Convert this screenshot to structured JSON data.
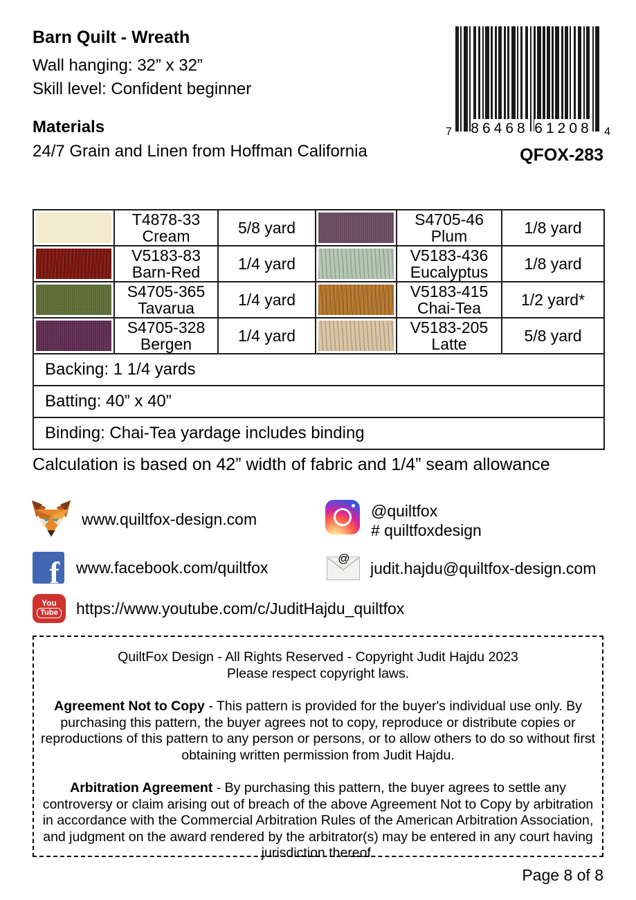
{
  "header": {
    "title": "Barn Quilt - Wreath",
    "size_line": "Wall hanging: 32” x 32”",
    "skill_line": "Skill level: Confident beginner",
    "materials_heading": "Materials",
    "materials_line": "24/7 Grain and Linen from Hoffman California"
  },
  "barcode": {
    "digit_left": "7",
    "group1": "86468",
    "group2": "61208",
    "digit_right": "4",
    "sku": "QFOX-283"
  },
  "fabric_table": {
    "rows": [
      {
        "left": {
          "code": "T4878-33",
          "name": "Cream",
          "yardage": "5/8 yard",
          "color": "#f3ebcd",
          "texture": "plain"
        },
        "right": {
          "code": "S4705-46",
          "name": "Plum",
          "yardage": "1/8 yard",
          "color": "#6a4b62",
          "texture": "linen"
        }
      },
      {
        "left": {
          "code": "V5183-83",
          "name": "Barn-Red",
          "yardage": "1/4 yard",
          "color": "#7d160f",
          "texture": "wood"
        },
        "right": {
          "code": "V5183-436",
          "name": "Eucalyptus",
          "yardage": "1/8 yard",
          "color": "#b4c6b2",
          "texture": "wood"
        }
      },
      {
        "left": {
          "code": "S4705-365",
          "name": "Tavarua",
          "yardage": "1/4 yard",
          "color": "#5e6e33",
          "texture": "linen"
        },
        "right": {
          "code": "V5183-415",
          "name": "Chai-Tea",
          "yardage": "1/2 yard*",
          "color": "#b4752a",
          "texture": "wood"
        }
      },
      {
        "left": {
          "code": "S4705-328",
          "name": "Bergen",
          "yardage": "1/4 yard",
          "color": "#5e2b50",
          "texture": "linen"
        },
        "right": {
          "code": "V5183-205",
          "name": "Latte",
          "yardage": "5/8 yard",
          "color": "#d9c3a2",
          "texture": "wood"
        }
      }
    ],
    "backing": "Backing: 1 1/4 yards",
    "batting": "Batting: 40” x 40”",
    "binding": "Binding: Chai-Tea yardage includes binding"
  },
  "calculation_note": "Calculation is based on 42” width of fabric and 1/4” seam allowance",
  "links": {
    "website": "www.quiltfox-design.com",
    "instagram_handle": "@quiltfox",
    "instagram_hashtag": "# quiltfoxdesign",
    "facebook": "www.facebook.com/quiltfox",
    "email": "judit.hajdu@quiltfox-design.com",
    "youtube": "https://www.youtube.com/c/JuditHajdu_quiltfox",
    "youtube_icon_top": "You",
    "youtube_icon_bottom": "Tube"
  },
  "copyright_box": {
    "line1": "QuiltFox Design - All Rights Reserved - Copyright Judit Hajdu 2023",
    "line2": "Please respect copyright laws.",
    "agreement_title": "Agreement Not to Copy",
    "agreement_text": " - This pattern is provided for the buyer's individual use only.  By purchasing this pattern, the buyer agrees not to copy, reproduce or distribute copies or reproductions of this pattern to any person or persons, or to allow others to do so without first obtaining written permission from Judit Hajdu.",
    "arbitration_title": "Arbitration Agreement",
    "arbitration_text": " - By purchasing this pattern, the buyer agrees to settle any controversy or claim arising out of breach of the above Agreement Not to Copy by arbitration in accordance with the Commercial Arbitration Rules of the American Arbitration Association, and judgment on the award rendered by the arbitrator(s) may be entered in any court having jurisdiction thereof."
  },
  "footer": {
    "page_label": "Page 8 of 8"
  }
}
